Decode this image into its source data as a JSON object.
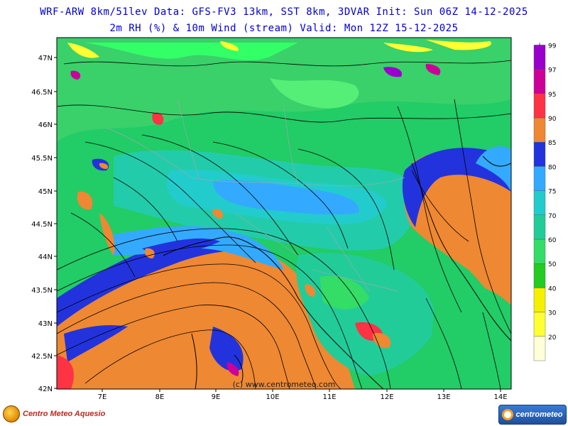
{
  "header": {
    "line1": "WRF-ARW 8km/51lev  Data: GFS-FV3 13km, SST 8km, 3DVAR  Init: Sun 06Z 14-12-2025",
    "line2": "2m RH (%) & 10m Wind (stream)  Valid: Mon 12Z 15-12-2025"
  },
  "map": {
    "lat_labels": [
      "47N",
      "46.5N",
      "46N",
      "45.5N",
      "45N",
      "44.5N",
      "44N",
      "43.5N",
      "43N",
      "42.5N",
      "42N"
    ],
    "lon_labels": [
      "7E",
      "8E",
      "9E",
      "10E",
      "11E",
      "12E",
      "13E",
      "14E"
    ],
    "credit": "(c) www.centrometeo.com"
  },
  "colorbar": {
    "levels": [
      "20",
      "30",
      "40",
      "50",
      "60",
      "70",
      "75",
      "80",
      "85",
      "90",
      "95",
      "97",
      "99"
    ],
    "colors": [
      "#ffffd8",
      "#ffff33",
      "#f5f000",
      "#22cc22",
      "#33dd66",
      "#22cc99",
      "#22cccc",
      "#33aaff",
      "#2233dd",
      "#ee8833",
      "#ff3344",
      "#cc0099",
      "#9900cc"
    ]
  },
  "logos": {
    "left_text": "Centro Meteo Aquesio",
    "right_text": "centrometeo"
  }
}
